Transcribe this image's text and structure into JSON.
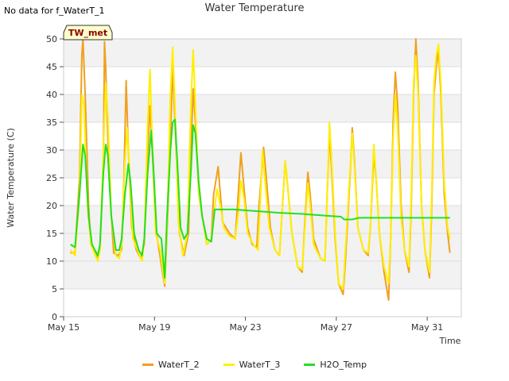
{
  "header": {
    "no_data_text": "No data for f_WaterT_1",
    "title": "Water Temperature",
    "badge": "TW_met"
  },
  "colors": {
    "WaterT_2": "#f0a020",
    "WaterT_3": "#ffef00",
    "H2O_Temp": "#22e022",
    "band": "#f2f2f2",
    "grid": "#dddddd"
  },
  "chart_data": {
    "type": "line",
    "title": "Water Temperature",
    "xlabel": "Time",
    "ylabel": "Water Temperature (C)",
    "ylim": [
      0,
      50
    ],
    "yticks": [
      0,
      5,
      10,
      15,
      20,
      25,
      30,
      35,
      40,
      45,
      50
    ],
    "xlim_days": [
      0,
      17.5
    ],
    "xticks": [
      {
        "day": 0,
        "label": "May 15"
      },
      {
        "day": 4,
        "label": "May 19"
      },
      {
        "day": 8,
        "label": "May 23"
      },
      {
        "day": 12,
        "label": "May 27"
      },
      {
        "day": 16,
        "label": "May 31"
      }
    ],
    "legend_position": "bottom-center",
    "grid": true,
    "series": [
      {
        "name": "WaterT_2",
        "color": "#f0a020",
        "points": [
          [
            0.3,
            11.5
          ],
          [
            0.5,
            11.5
          ],
          [
            0.7,
            25
          ],
          [
            0.8,
            47
          ],
          [
            0.85,
            50
          ],
          [
            0.95,
            40
          ],
          [
            1.1,
            20
          ],
          [
            1.2,
            13
          ],
          [
            1.5,
            10.5
          ],
          [
            1.6,
            12
          ],
          [
            1.75,
            28
          ],
          [
            1.8,
            49.5
          ],
          [
            1.85,
            45
          ],
          [
            2.0,
            25
          ],
          [
            2.2,
            11.5
          ],
          [
            2.4,
            11
          ],
          [
            2.55,
            12
          ],
          [
            2.65,
            24
          ],
          [
            2.75,
            42.5
          ],
          [
            2.85,
            30
          ],
          [
            3.0,
            16
          ],
          [
            3.2,
            12
          ],
          [
            3.4,
            10.5
          ],
          [
            3.55,
            13
          ],
          [
            3.65,
            25
          ],
          [
            3.8,
            38
          ],
          [
            3.9,
            30
          ],
          [
            4.05,
            16
          ],
          [
            4.2,
            12
          ],
          [
            4.45,
            5.5
          ],
          [
            4.55,
            15
          ],
          [
            4.7,
            32
          ],
          [
            4.8,
            45
          ],
          [
            4.95,
            30
          ],
          [
            5.1,
            15
          ],
          [
            5.3,
            11
          ],
          [
            5.5,
            15
          ],
          [
            5.6,
            30
          ],
          [
            5.7,
            41
          ],
          [
            5.8,
            35
          ],
          [
            5.95,
            22
          ],
          [
            6.1,
            18
          ],
          [
            6.3,
            13
          ],
          [
            6.5,
            14
          ],
          [
            6.6,
            22
          ],
          [
            6.8,
            27
          ],
          [
            6.9,
            22
          ],
          [
            7.0,
            17
          ],
          [
            7.3,
            15
          ],
          [
            7.55,
            14
          ],
          [
            7.65,
            20
          ],
          [
            7.8,
            29.5
          ],
          [
            7.9,
            25
          ],
          [
            8.1,
            16
          ],
          [
            8.3,
            13
          ],
          [
            8.5,
            12.5
          ],
          [
            8.6,
            20
          ],
          [
            8.8,
            30.5
          ],
          [
            8.9,
            26
          ],
          [
            9.1,
            16
          ],
          [
            9.3,
            12
          ],
          [
            9.5,
            11
          ],
          [
            9.6,
            18
          ],
          [
            9.75,
            28
          ],
          [
            9.85,
            24
          ],
          [
            10.05,
            15
          ],
          [
            10.3,
            9
          ],
          [
            10.5,
            8
          ],
          [
            10.6,
            16
          ],
          [
            10.75,
            26
          ],
          [
            10.85,
            22
          ],
          [
            11.0,
            14
          ],
          [
            11.3,
            10.5
          ],
          [
            11.5,
            10
          ],
          [
            11.6,
            22
          ],
          [
            11.7,
            33
          ],
          [
            11.8,
            26
          ],
          [
            11.95,
            14
          ],
          [
            12.1,
            6
          ],
          [
            12.3,
            4
          ],
          [
            12.4,
            10
          ],
          [
            12.6,
            25
          ],
          [
            12.7,
            34
          ],
          [
            12.8,
            28
          ],
          [
            12.95,
            16
          ],
          [
            13.2,
            12
          ],
          [
            13.4,
            11
          ],
          [
            13.5,
            16
          ],
          [
            13.65,
            29
          ],
          [
            13.75,
            25
          ],
          [
            13.9,
            15
          ],
          [
            14.1,
            8
          ],
          [
            14.3,
            3
          ],
          [
            14.4,
            15
          ],
          [
            14.5,
            35
          ],
          [
            14.6,
            44
          ],
          [
            14.7,
            38
          ],
          [
            14.85,
            20
          ],
          [
            15.0,
            12
          ],
          [
            15.2,
            8
          ],
          [
            15.3,
            20
          ],
          [
            15.4,
            40
          ],
          [
            15.5,
            50
          ],
          [
            15.6,
            42
          ],
          [
            15.75,
            20
          ],
          [
            15.9,
            12
          ],
          [
            16.1,
            7
          ],
          [
            16.2,
            20
          ],
          [
            16.3,
            40
          ],
          [
            16.4,
            45
          ],
          [
            16.5,
            48
          ],
          [
            16.6,
            40
          ],
          [
            16.75,
            22
          ],
          [
            16.9,
            15
          ],
          [
            17.0,
            11.5
          ]
        ]
      },
      {
        "name": "WaterT_3",
        "color": "#ffef00",
        "points": [
          [
            0.3,
            12
          ],
          [
            0.5,
            11
          ],
          [
            0.7,
            22
          ],
          [
            0.8,
            40
          ],
          [
            0.9,
            38
          ],
          [
            1.05,
            20
          ],
          [
            1.2,
            13
          ],
          [
            1.5,
            10
          ],
          [
            1.6,
            12
          ],
          [
            1.75,
            30
          ],
          [
            1.85,
            42
          ],
          [
            1.95,
            36
          ],
          [
            2.1,
            18
          ],
          [
            2.3,
            11
          ],
          [
            2.45,
            10.5
          ],
          [
            2.55,
            13
          ],
          [
            2.7,
            28
          ],
          [
            2.8,
            34
          ],
          [
            2.9,
            26
          ],
          [
            3.05,
            14
          ],
          [
            3.25,
            12
          ],
          [
            3.45,
            10
          ],
          [
            3.55,
            14
          ],
          [
            3.7,
            35
          ],
          [
            3.8,
            44.5
          ],
          [
            3.9,
            32
          ],
          [
            4.05,
            15
          ],
          [
            4.25,
            12
          ],
          [
            4.45,
            6
          ],
          [
            4.55,
            16
          ],
          [
            4.7,
            40
          ],
          [
            4.8,
            48.5
          ],
          [
            4.9,
            38
          ],
          [
            5.05,
            17
          ],
          [
            5.25,
            11
          ],
          [
            5.45,
            15
          ],
          [
            5.6,
            38
          ],
          [
            5.7,
            48
          ],
          [
            5.8,
            38
          ],
          [
            5.95,
            22
          ],
          [
            6.1,
            18
          ],
          [
            6.3,
            13
          ],
          [
            6.5,
            14
          ],
          [
            6.6,
            18
          ],
          [
            6.75,
            23
          ],
          [
            6.9,
            20
          ],
          [
            7.05,
            16
          ],
          [
            7.3,
            14.5
          ],
          [
            7.55,
            14
          ],
          [
            7.7,
            19
          ],
          [
            7.8,
            24.5
          ],
          [
            7.95,
            21
          ],
          [
            8.1,
            15
          ],
          [
            8.35,
            13
          ],
          [
            8.55,
            12
          ],
          [
            8.65,
            20
          ],
          [
            8.75,
            30
          ],
          [
            8.85,
            25
          ],
          [
            9.05,
            16
          ],
          [
            9.3,
            12
          ],
          [
            9.5,
            11
          ],
          [
            9.6,
            18
          ],
          [
            9.75,
            28
          ],
          [
            9.85,
            24
          ],
          [
            10.05,
            15
          ],
          [
            10.3,
            9
          ],
          [
            10.5,
            8.5
          ],
          [
            10.6,
            15
          ],
          [
            10.75,
            24
          ],
          [
            10.85,
            20
          ],
          [
            11.0,
            13
          ],
          [
            11.3,
            10.5
          ],
          [
            11.5,
            10
          ],
          [
            11.6,
            22
          ],
          [
            11.7,
            35
          ],
          [
            11.8,
            28
          ],
          [
            11.95,
            15
          ],
          [
            12.1,
            6
          ],
          [
            12.3,
            5
          ],
          [
            12.4,
            12
          ],
          [
            12.6,
            26
          ],
          [
            12.7,
            33
          ],
          [
            12.8,
            27
          ],
          [
            12.95,
            16
          ],
          [
            13.2,
            12
          ],
          [
            13.4,
            11.5
          ],
          [
            13.5,
            16
          ],
          [
            13.65,
            31
          ],
          [
            13.75,
            25
          ],
          [
            13.9,
            15
          ],
          [
            14.1,
            9
          ],
          [
            14.3,
            6
          ],
          [
            14.4,
            15
          ],
          [
            14.5,
            32
          ],
          [
            14.6,
            40
          ],
          [
            14.7,
            34
          ],
          [
            14.85,
            18
          ],
          [
            15.0,
            12
          ],
          [
            15.2,
            9
          ],
          [
            15.3,
            22
          ],
          [
            15.4,
            42
          ],
          [
            15.5,
            47
          ],
          [
            15.6,
            40
          ],
          [
            15.75,
            20
          ],
          [
            15.9,
            12
          ],
          [
            16.1,
            8
          ],
          [
            16.2,
            22
          ],
          [
            16.3,
            42
          ],
          [
            16.4,
            47
          ],
          [
            16.5,
            49
          ],
          [
            16.6,
            42
          ],
          [
            16.75,
            24
          ],
          [
            16.9,
            16
          ],
          [
            17.0,
            14
          ]
        ]
      },
      {
        "name": "H2O_Temp",
        "color": "#22e022",
        "points": [
          [
            0.3,
            13
          ],
          [
            0.5,
            12.5
          ],
          [
            0.7,
            22
          ],
          [
            0.85,
            31
          ],
          [
            0.95,
            29
          ],
          [
            1.1,
            18
          ],
          [
            1.25,
            13
          ],
          [
            1.5,
            11
          ],
          [
            1.6,
            13
          ],
          [
            1.75,
            26
          ],
          [
            1.85,
            31
          ],
          [
            1.95,
            29
          ],
          [
            2.1,
            18
          ],
          [
            2.3,
            12
          ],
          [
            2.45,
            12
          ],
          [
            2.55,
            14
          ],
          [
            2.7,
            22
          ],
          [
            2.85,
            27.5
          ],
          [
            2.95,
            24
          ],
          [
            3.1,
            15
          ],
          [
            3.3,
            12
          ],
          [
            3.45,
            11
          ],
          [
            3.55,
            14
          ],
          [
            3.7,
            26
          ],
          [
            3.85,
            33.5
          ],
          [
            3.95,
            27
          ],
          [
            4.1,
            15
          ],
          [
            4.3,
            14
          ],
          [
            4.45,
            7
          ],
          [
            4.55,
            18
          ],
          [
            4.7,
            30
          ],
          [
            4.8,
            35
          ],
          [
            4.9,
            35.5
          ],
          [
            5.0,
            28
          ],
          [
            5.15,
            16
          ],
          [
            5.3,
            14
          ],
          [
            5.45,
            15
          ],
          [
            5.6,
            26
          ],
          [
            5.7,
            34.5
          ],
          [
            5.8,
            33
          ],
          [
            5.95,
            24
          ],
          [
            6.1,
            18
          ],
          [
            6.3,
            14
          ],
          [
            6.5,
            13.5
          ],
          [
            6.65,
            19.3
          ],
          [
            7.5,
            19.3
          ],
          [
            8.5,
            19
          ],
          [
            9.5,
            18.7
          ],
          [
            10.5,
            18.5
          ],
          [
            11.5,
            18.2
          ],
          [
            12.2,
            18
          ],
          [
            12.35,
            17.5
          ],
          [
            12.7,
            17.5
          ],
          [
            13.0,
            17.8
          ],
          [
            14.0,
            17.8
          ],
          [
            15.0,
            17.8
          ],
          [
            16.0,
            17.8
          ],
          [
            17.0,
            17.8
          ]
        ]
      }
    ]
  }
}
